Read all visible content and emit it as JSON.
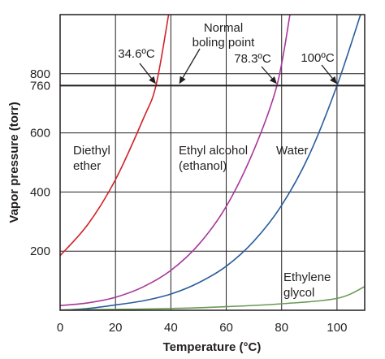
{
  "chart_data": {
    "type": "line",
    "xlabel": "Temperature (°C)",
    "ylabel": "Vapor pressure (torr)",
    "xlim": [
      0,
      110
    ],
    "ylim": [
      0,
      1000
    ],
    "x_ticks": [
      0,
      20,
      40,
      60,
      80,
      100
    ],
    "y_ticks": [
      200,
      400,
      600,
      760,
      800
    ],
    "grid": "vertical and horizontal lines at major ticks",
    "reference_line": {
      "y": 760
    },
    "series": [
      {
        "name": "Diethyl ether",
        "label_lines": [
          "Diethyl",
          "ether"
        ],
        "color": "#d2232a",
        "points": [
          [
            0,
            185
          ],
          [
            10,
            290
          ],
          [
            20,
            442
          ],
          [
            30,
            647
          ],
          [
            34.6,
            760
          ],
          [
            39.2,
            1000
          ]
        ]
      },
      {
        "name": "Ethyl alcohol (ethanol)",
        "label_lines": [
          "Ethyl alcohol",
          "(ethanol)"
        ],
        "color": "#a7379a",
        "points": [
          [
            0,
            16
          ],
          [
            10,
            25
          ],
          [
            20,
            44
          ],
          [
            30,
            79
          ],
          [
            40,
            135
          ],
          [
            50,
            222
          ],
          [
            60,
            351
          ],
          [
            70,
            542
          ],
          [
            78.3,
            760
          ],
          [
            83,
            1000
          ]
        ]
      },
      {
        "name": "Water",
        "label_lines": [
          "Water"
        ],
        "color": "#2a5d9a",
        "points": [
          [
            0,
            0
          ],
          [
            10,
            6
          ],
          [
            20,
            18
          ],
          [
            30,
            32
          ],
          [
            40,
            55
          ],
          [
            50,
            93
          ],
          [
            60,
            149
          ],
          [
            70,
            234
          ],
          [
            80,
            355
          ],
          [
            90,
            526
          ],
          [
            100,
            760
          ],
          [
            108.5,
            1000
          ]
        ]
      },
      {
        "name": "Ethylene glycol",
        "label_lines": [
          "Ethylene",
          "glycol"
        ],
        "color": "#6a9a55",
        "points": [
          [
            0,
            1
          ],
          [
            20,
            3
          ],
          [
            40,
            6
          ],
          [
            60,
            12
          ],
          [
            80,
            22
          ],
          [
            100,
            40
          ],
          [
            110,
            80
          ]
        ]
      }
    ],
    "annotations": [
      {
        "id": "ann-ether",
        "text": "34.6ºC",
        "point": [
          34.6,
          760
        ]
      },
      {
        "id": "ann-ethanol",
        "text": "78.3ºC",
        "point": [
          78.3,
          760
        ]
      },
      {
        "id": "ann-water",
        "text": "100ºC",
        "point": [
          100,
          760
        ]
      },
      {
        "id": "ann-normal",
        "lines": [
          "Normal",
          "boling point"
        ],
        "point": [
          43,
          760
        ]
      }
    ]
  }
}
